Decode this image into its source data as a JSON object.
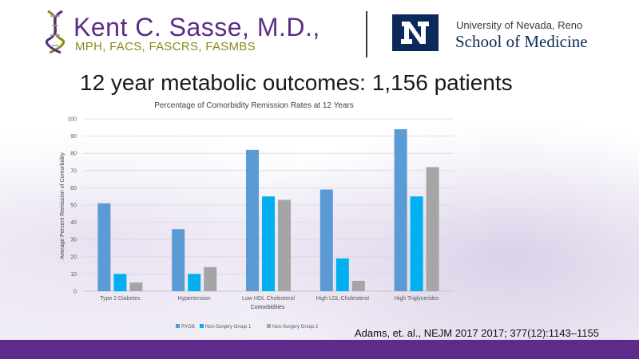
{
  "header": {
    "name": "Kent C. Sasse, M.D.,",
    "credentials": "MPH, FACS, FASCRS, FASMBS",
    "university": "University of Nevada, Reno",
    "school": "School of Medicine"
  },
  "slide_title": "12 year metabolic outcomes: 1,156 patients",
  "citation": "Adams, et. al., NEJM 2017 2017; 377(12):1143–1155",
  "colors": {
    "rygb": "#5b9bd5",
    "non_surgery_1": "#00b0f0",
    "non_surgery_2": "#a5a5a5",
    "brand_purple": "#5e2a8c",
    "brand_navy": "#0b2a5b"
  },
  "chart_data": {
    "type": "bar",
    "title": "Percentage of Comorbidity Remission Rates at 12 Years",
    "xlabel": "Comorbidities",
    "ylabel": "Average Percent Remission of Comorbidity",
    "ylim": [
      0,
      100
    ],
    "yticks": [
      0,
      10,
      20,
      30,
      40,
      50,
      60,
      70,
      80,
      90,
      100
    ],
    "grid": true,
    "legend_position": "bottom",
    "categories": [
      "Type 2 Diabetes",
      "Hypertension",
      "Low HDL Cholesterol",
      "High LDL Cholesterol",
      "High Triglycerides"
    ],
    "series": [
      {
        "name": "RYGB",
        "color": "#5b9bd5",
        "values": [
          51,
          36,
          82,
          59,
          94
        ]
      },
      {
        "name": "Non-Surgery Group 1",
        "color": "#00b0f0",
        "values": [
          10,
          10,
          55,
          19,
          55
        ]
      },
      {
        "name": "Non-Surgery Group 2",
        "color": "#a5a5a5",
        "values": [
          5,
          14,
          53,
          6,
          72
        ]
      }
    ]
  }
}
